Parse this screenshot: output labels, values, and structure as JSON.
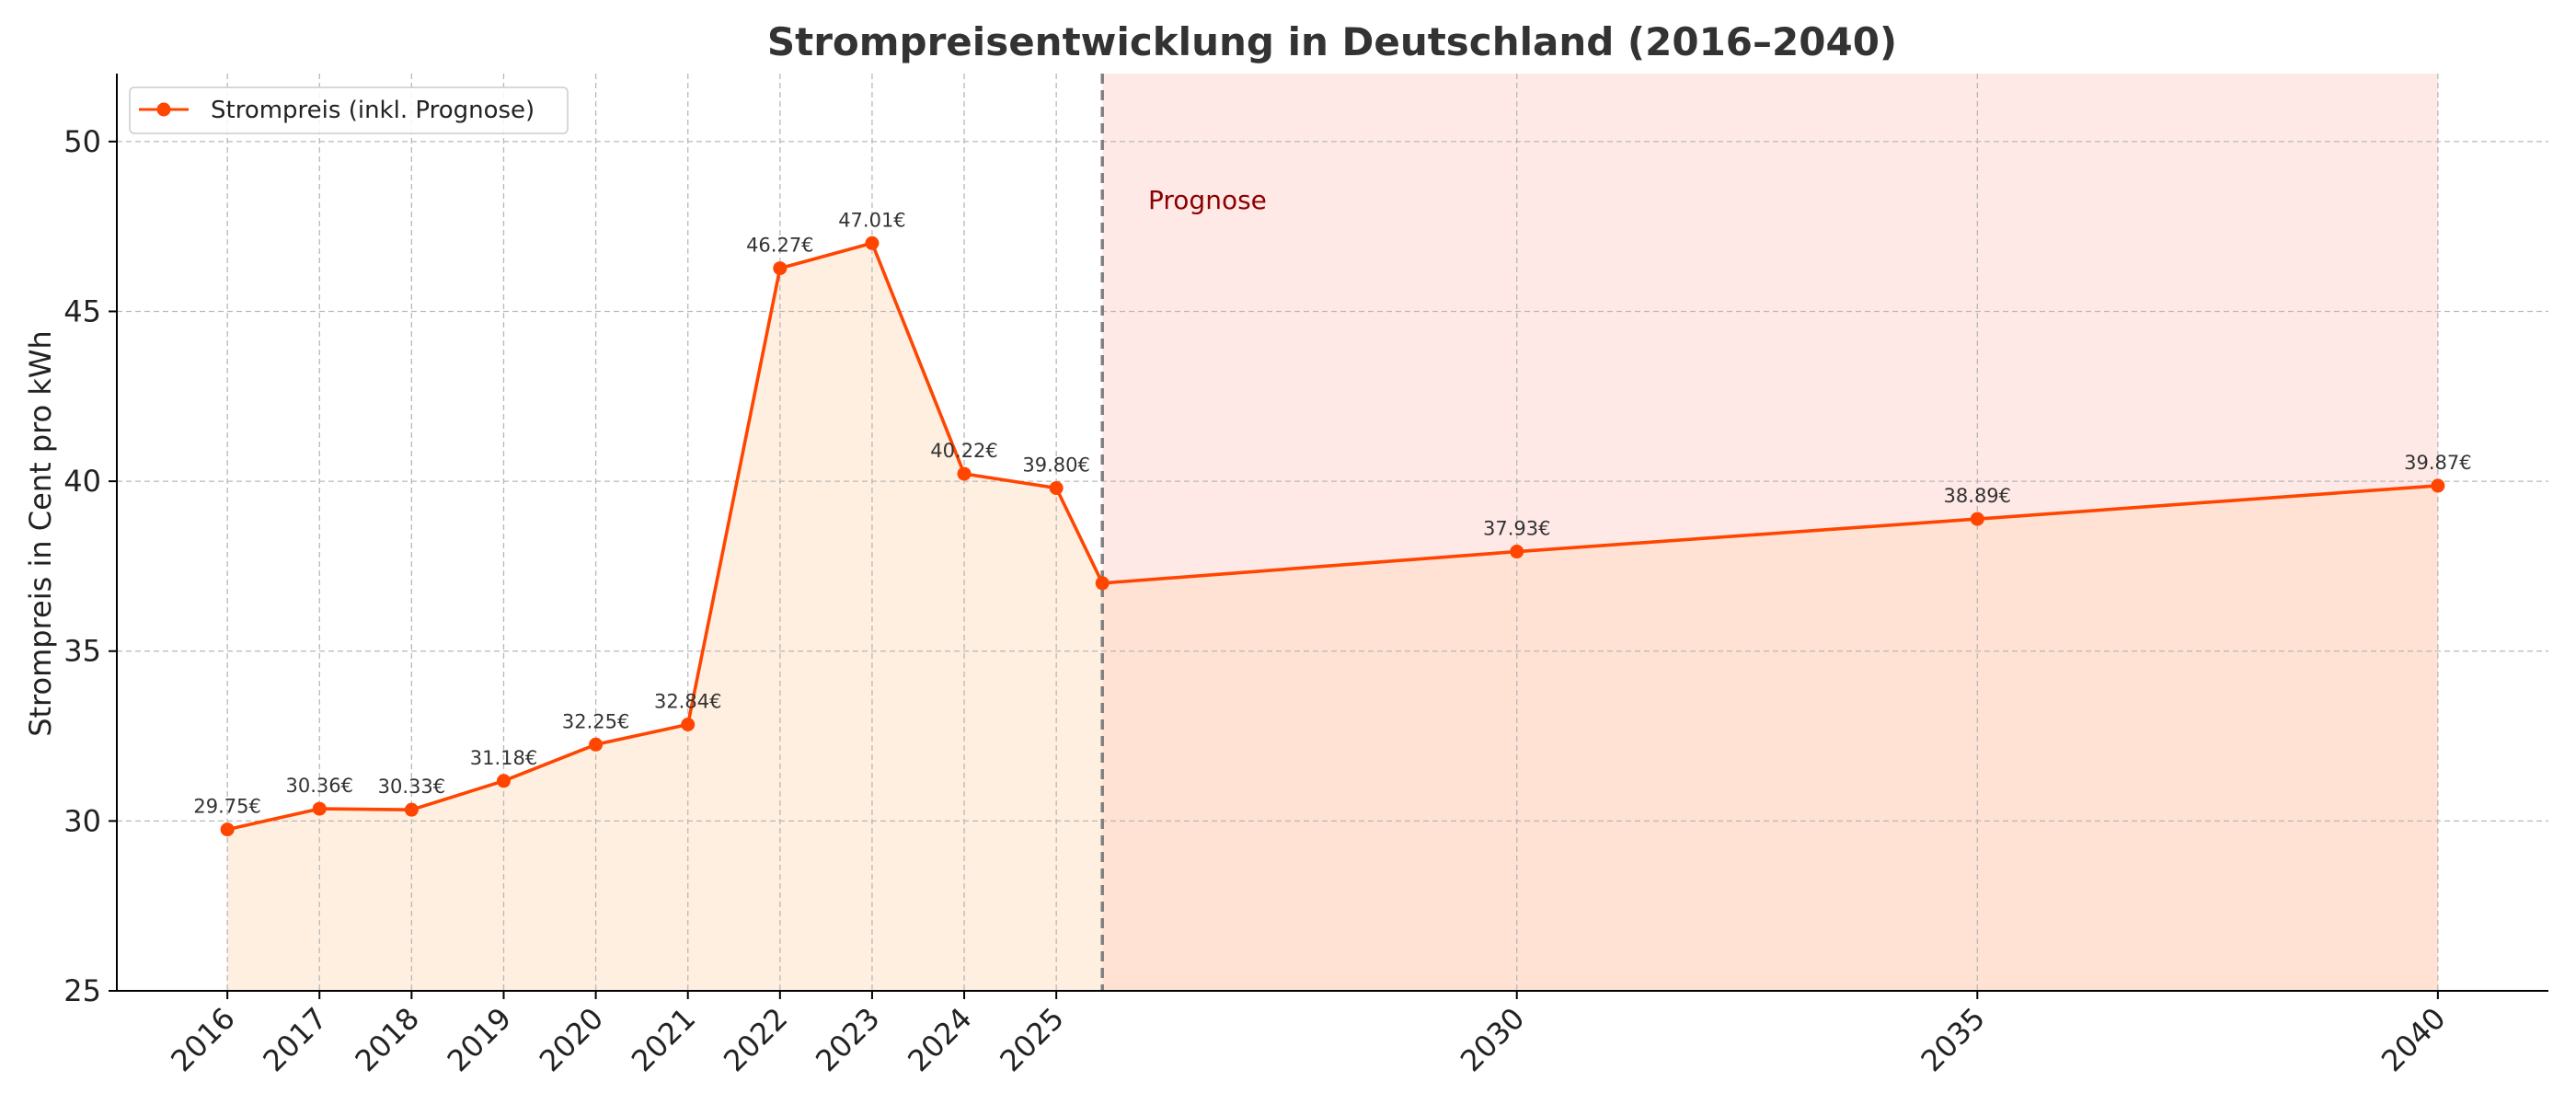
{
  "chart_data": {
    "type": "line",
    "title": "Strompreisentwicklung in Deutschland (2016–2040)",
    "xlabel": "",
    "ylabel": "Strompreis in Cent pro kWh",
    "ylim": [
      25,
      52
    ],
    "yticks": [
      25,
      30,
      35,
      40,
      45,
      50
    ],
    "xticks": [
      2016,
      2017,
      2018,
      2019,
      2020,
      2021,
      2022,
      2023,
      2024,
      2025,
      2030,
      2035,
      2040
    ],
    "xlim": [
      2014.8,
      2041.2
    ],
    "grid": true,
    "legend_position": "top-left",
    "series": [
      {
        "name": "Strompreis (inkl. Prognose)",
        "color": "#ff4500",
        "marker": "circle",
        "x": [
          2016,
          2017,
          2018,
          2019,
          2020,
          2021,
          2022,
          2023,
          2024,
          2025,
          2025.5,
          2030,
          2035,
          2040
        ],
        "y": [
          29.75,
          30.36,
          30.33,
          31.18,
          32.25,
          32.84,
          46.27,
          47.01,
          40.22,
          39.8,
          37.0,
          37.93,
          38.89,
          39.87
        ],
        "labels": [
          "29.75€",
          "30.36€",
          "30.33€",
          "31.18€",
          "32.25€",
          "32.84€",
          "46.27€",
          "47.01€",
          "40.22€",
          "39.80€",
          "",
          "37.93€",
          "38.89€",
          "39.87€"
        ]
      }
    ],
    "forecast": {
      "start_x": 2025.5,
      "end_x": 2040,
      "divider_color": "#808080",
      "band_color": "#ffe9e6",
      "label": "Prognose",
      "label_color": "#8b0000"
    },
    "fill": {
      "history_color": "#ffefe0",
      "forecast_color": "#ffe2d3"
    }
  }
}
